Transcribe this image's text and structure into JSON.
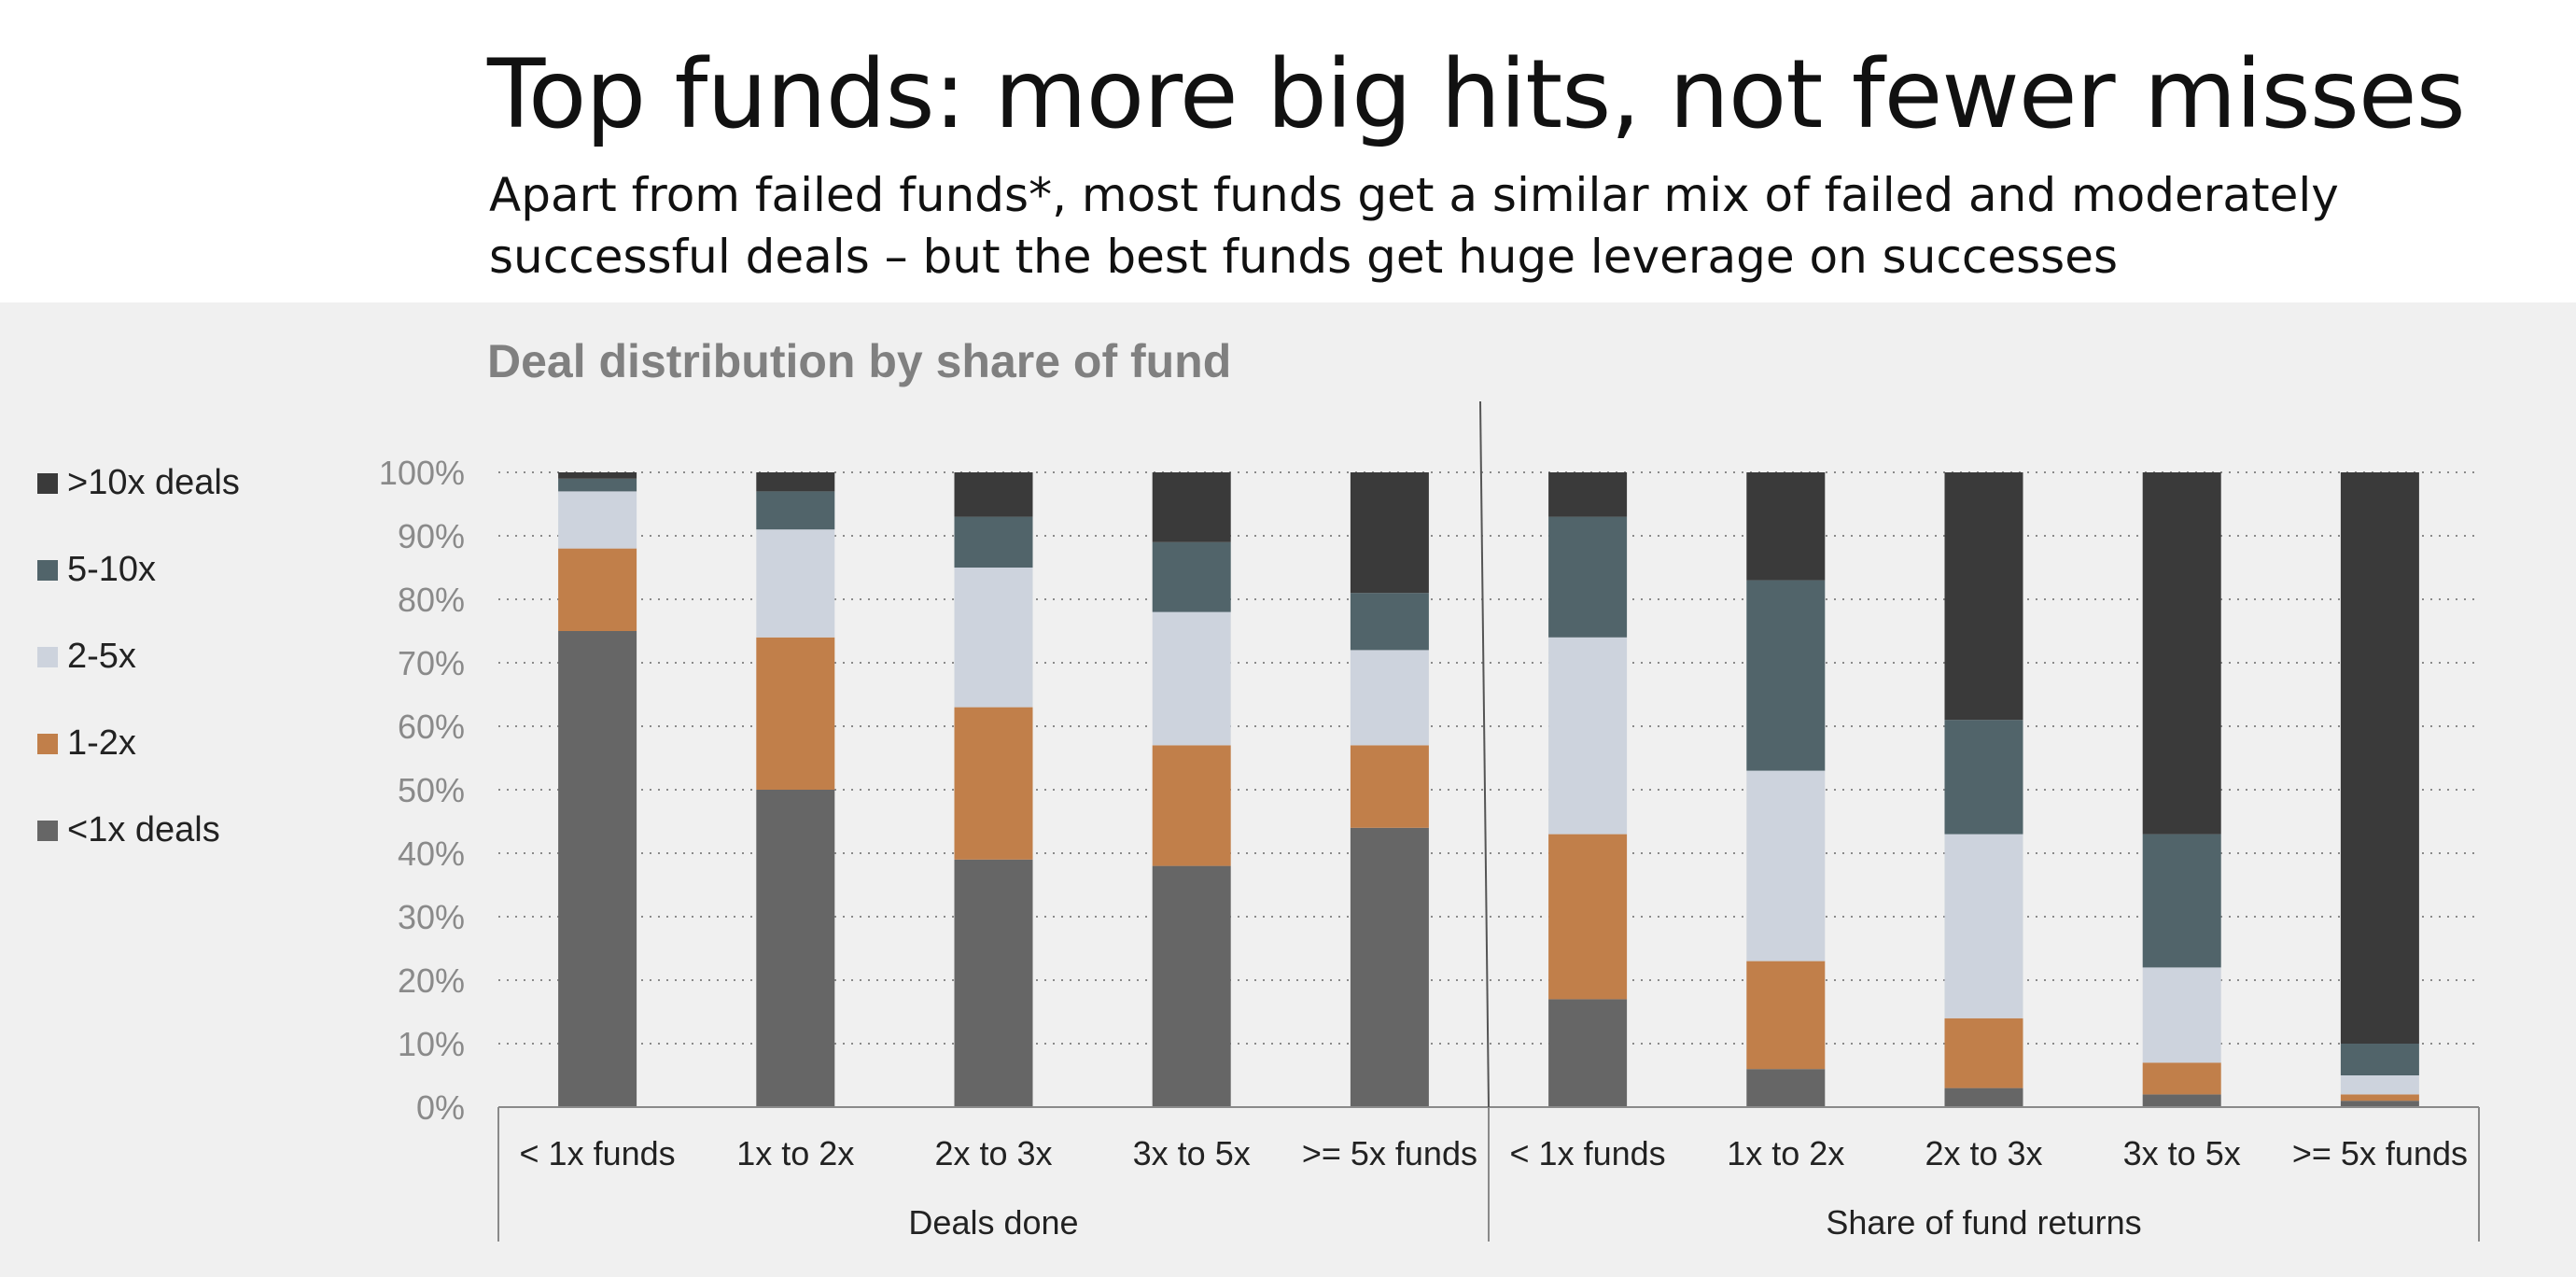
{
  "header": {
    "title": "Top funds: more big hits, not fewer misses",
    "subtitle": "Apart from failed funds*, most funds get a similar mix of failed and moderately successful deals – but the best funds get huge leverage on successes"
  },
  "colors": {
    "panel_bg": "#f0f0f0",
    "lt1x": "#666666",
    "x1_2": "#c17f4a",
    "x2_5": "#cdd3dd",
    "x5_10": "#51646a",
    "gt10x": "#3a3a3a"
  },
  "chart_data": {
    "type": "bar",
    "stacked": true,
    "title": "Deal distribution by share of fund",
    "ylim": [
      0,
      100
    ],
    "y_ticks": [
      "0%",
      "10%",
      "20%",
      "30%",
      "40%",
      "50%",
      "60%",
      "70%",
      "80%",
      "90%",
      "100%"
    ],
    "grid": "horizontal dotted",
    "legend_position": "left",
    "groups": [
      {
        "label": "Deals done",
        "categories": [
          "< 1x funds",
          "1x to 2x",
          "2x to 3x",
          "3x to 5x",
          ">= 5x funds"
        ],
        "series": [
          {
            "name": "<1x deals",
            "values": [
              75,
              50,
              39,
              38,
              44
            ]
          },
          {
            "name": "1-2x",
            "values": [
              13,
              24,
              24,
              19,
              13
            ]
          },
          {
            "name": "2-5x",
            "values": [
              9,
              17,
              22,
              21,
              15
            ]
          },
          {
            "name": "5-10x",
            "values": [
              2,
              6,
              8,
              11,
              9
            ]
          },
          {
            "name": ">10x deals",
            "values": [
              1,
              3,
              7,
              11,
              19
            ]
          }
        ]
      },
      {
        "label": "Share of fund returns",
        "categories": [
          "< 1x funds",
          "1x to 2x",
          "2x to 3x",
          "3x to 5x",
          ">= 5x funds"
        ],
        "series": [
          {
            "name": "<1x deals",
            "values": [
              17,
              6,
              3,
              2,
              1
            ]
          },
          {
            "name": "1-2x",
            "values": [
              26,
              17,
              11,
              5,
              1
            ]
          },
          {
            "name": "2-5x",
            "values": [
              31,
              30,
              29,
              15,
              3
            ]
          },
          {
            "name": "5-10x",
            "values": [
              19,
              30,
              18,
              21,
              5
            ]
          },
          {
            "name": ">10x deals",
            "values": [
              7,
              17,
              39,
              57,
              90
            ]
          }
        ]
      }
    ],
    "legend": [
      ">10x deals",
      "5-10x",
      "2-5x",
      "1-2x",
      "<1x deals"
    ]
  }
}
